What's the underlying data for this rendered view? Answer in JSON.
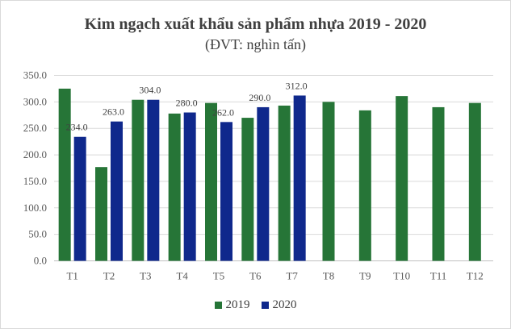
{
  "chart_data": {
    "type": "bar",
    "title": "Kim ngạch xuất khẩu sản phẩm nhựa 2019 - 2020",
    "subtitle": "(ĐVT: nghìn  tấn)",
    "categories": [
      "T1",
      "T2",
      "T3",
      "T4",
      "T5",
      "T6",
      "T7",
      "T8",
      "T9",
      "T10",
      "T11",
      "T12"
    ],
    "series": [
      {
        "name": "2019",
        "color": "#267537",
        "values": [
          325,
          177,
          304,
          278,
          298,
          270,
          293,
          300,
          284,
          311,
          290,
          298
        ]
      },
      {
        "name": "2020",
        "color": "#0f288c",
        "values": [
          234,
          263,
          304,
          280,
          262,
          290,
          312,
          null,
          null,
          null,
          null,
          null
        ],
        "data_labels": [
          "234.0",
          "263.0",
          "304.0",
          "280.0",
          "262.0",
          "290.0",
          "312.0"
        ]
      }
    ],
    "ylim": [
      0,
      350
    ],
    "yticks": [
      "0.0",
      "50.0",
      "100.0",
      "150.0",
      "200.0",
      "250.0",
      "300.0",
      "350.0"
    ],
    "grid": true,
    "legend": "bottom"
  }
}
